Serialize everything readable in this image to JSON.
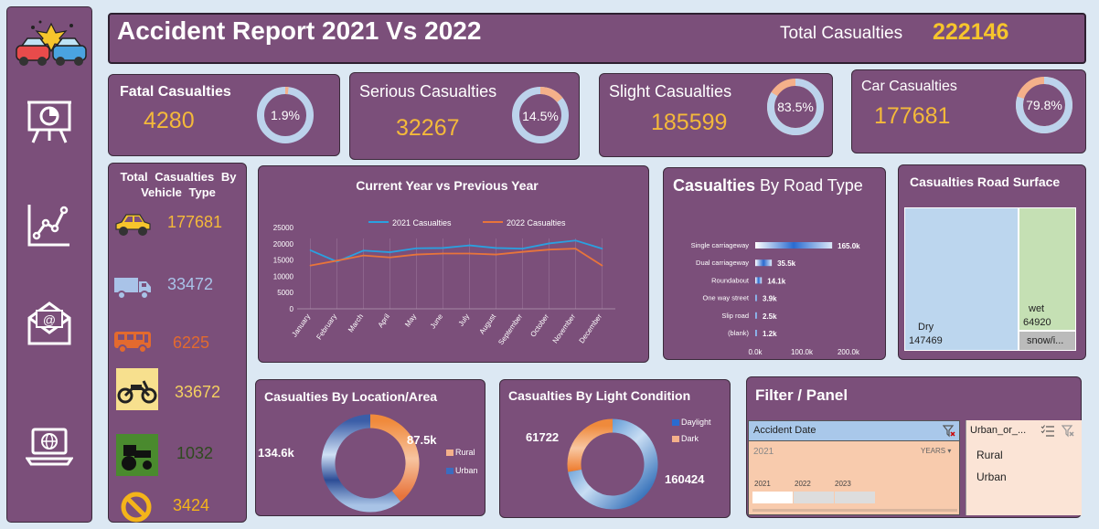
{
  "header": {
    "title": "Accident Report 2021 Vs 2022",
    "total_label": "Total Casualties",
    "total_value": "222146"
  },
  "sidebar": {
    "icons": [
      "car-crash-icon",
      "presentation-icon",
      "line-chart-icon",
      "mail-icon",
      "laptop-globe-icon"
    ]
  },
  "kpis": {
    "fatal": {
      "label": "Fatal Casualties",
      "value": "4280",
      "pct": "1.9%",
      "fraction": 0.019
    },
    "serious": {
      "label": "Serious Casualties",
      "value": "32267",
      "pct": "14.5%",
      "fraction": 0.145
    },
    "slight": {
      "label": "Slight Casualties",
      "value": "185599",
      "pct": "83.5%",
      "fraction": 0.835
    },
    "car": {
      "label": "Car Casualties",
      "value": "177681",
      "pct": "79.8%",
      "fraction": 0.798
    }
  },
  "vehicles": {
    "title": "Total Casualties By Vehicle Type",
    "items": [
      {
        "icon": "car-icon",
        "value": "177681",
        "color": "#f4b93a"
      },
      {
        "icon": "truck-icon",
        "value": "33472",
        "color": "#a9c3e8"
      },
      {
        "icon": "bus-icon",
        "value": "6225",
        "color": "#e36a2e"
      },
      {
        "icon": "motorcycle-icon",
        "value": "33672",
        "color": "#f4d060"
      },
      {
        "icon": "tractor-icon",
        "value": "1032",
        "color": "#2e4a1e"
      },
      {
        "icon": "no-entry-icon",
        "value": "3424",
        "color": "#f4b41a"
      }
    ]
  },
  "line_chart": {
    "title": "Current Year vs Previous Year",
    "legend": [
      "2021 Casualties",
      "2022 Casualties"
    ],
    "y_ticks": [
      "25000",
      "20000",
      "15000",
      "10000",
      "5000",
      "0"
    ]
  },
  "road_type": {
    "title_bold": "Casualties",
    "title_rest": " By Road Type",
    "x_ticks": [
      "0.0k",
      "100.0k",
      "200.0k"
    ]
  },
  "road_surface": {
    "title": "Casualties Road Surface",
    "dry_label": "Dry",
    "dry_value": "147469",
    "wet_label": "wet",
    "wet_value": "64920",
    "snow_label": "snow/i..."
  },
  "location": {
    "title": "Casualties By Location/Area",
    "left_value": "134.6k",
    "right_value": "87.5k",
    "legend": [
      "Rural",
      "Urban"
    ]
  },
  "light": {
    "title": "Casualties By Light Condition",
    "left_value": "61722",
    "right_value": "160424",
    "legend": [
      "Daylight",
      "Dark"
    ]
  },
  "filter": {
    "title": "Filter / Panel",
    "date_slicer": {
      "header": "Accident Date",
      "selected": "2021",
      "level": "YEARS",
      "years": [
        "2021",
        "2022",
        "2023"
      ]
    },
    "urban_slicer": {
      "header": "Urban_or_...",
      "items": [
        "Rural",
        "Urban"
      ]
    }
  },
  "chart_data": [
    {
      "type": "line",
      "title": "Current Year vs Previous Year",
      "categories": [
        "January",
        "February",
        "March",
        "April",
        "May",
        "June",
        "July",
        "August",
        "September",
        "October",
        "November",
        "December"
      ],
      "series": [
        {
          "name": "2021 Casualties",
          "color": "#2aa0e0",
          "values": [
            18000,
            14500,
            17900,
            17400,
            18600,
            18700,
            19500,
            18700,
            18500,
            20100,
            21000,
            18500
          ]
        },
        {
          "name": "2022 Casualties",
          "color": "#e8743b",
          "values": [
            13300,
            14800,
            16400,
            15800,
            16700,
            17000,
            17000,
            16700,
            17500,
            18200,
            18500,
            13300
          ]
        }
      ],
      "ylim": [
        0,
        25000
      ],
      "legend": "top"
    },
    {
      "type": "bar",
      "title": "Casualties By Road Type",
      "categories": [
        "Single carriageway",
        "Dual carriageway",
        "Roundabout",
        "One way street",
        "Slip road",
        "(blank)"
      ],
      "values": [
        165000,
        35500,
        14100,
        3900,
        2500,
        1200
      ],
      "labels": [
        "165.0k",
        "35.5k",
        "14.1k",
        "3.9k",
        "2.5k",
        "1.2k"
      ],
      "xlim": [
        0,
        200000
      ]
    },
    {
      "type": "heatmap",
      "title": "Casualties Road Surface",
      "categories": [
        "Dry",
        "wet",
        "snow/i..."
      ],
      "values": [
        147469,
        64920,
        null
      ]
    },
    {
      "type": "pie",
      "title": "Casualties By Location/Area",
      "categories": [
        "Rural",
        "Urban"
      ],
      "values": [
        87500,
        134600
      ],
      "labels": [
        "87.5k",
        "134.6k"
      ]
    },
    {
      "type": "pie",
      "title": "Casualties By Light Condition",
      "categories": [
        "Daylight",
        "Dark"
      ],
      "values": [
        160424,
        61722
      ]
    }
  ]
}
